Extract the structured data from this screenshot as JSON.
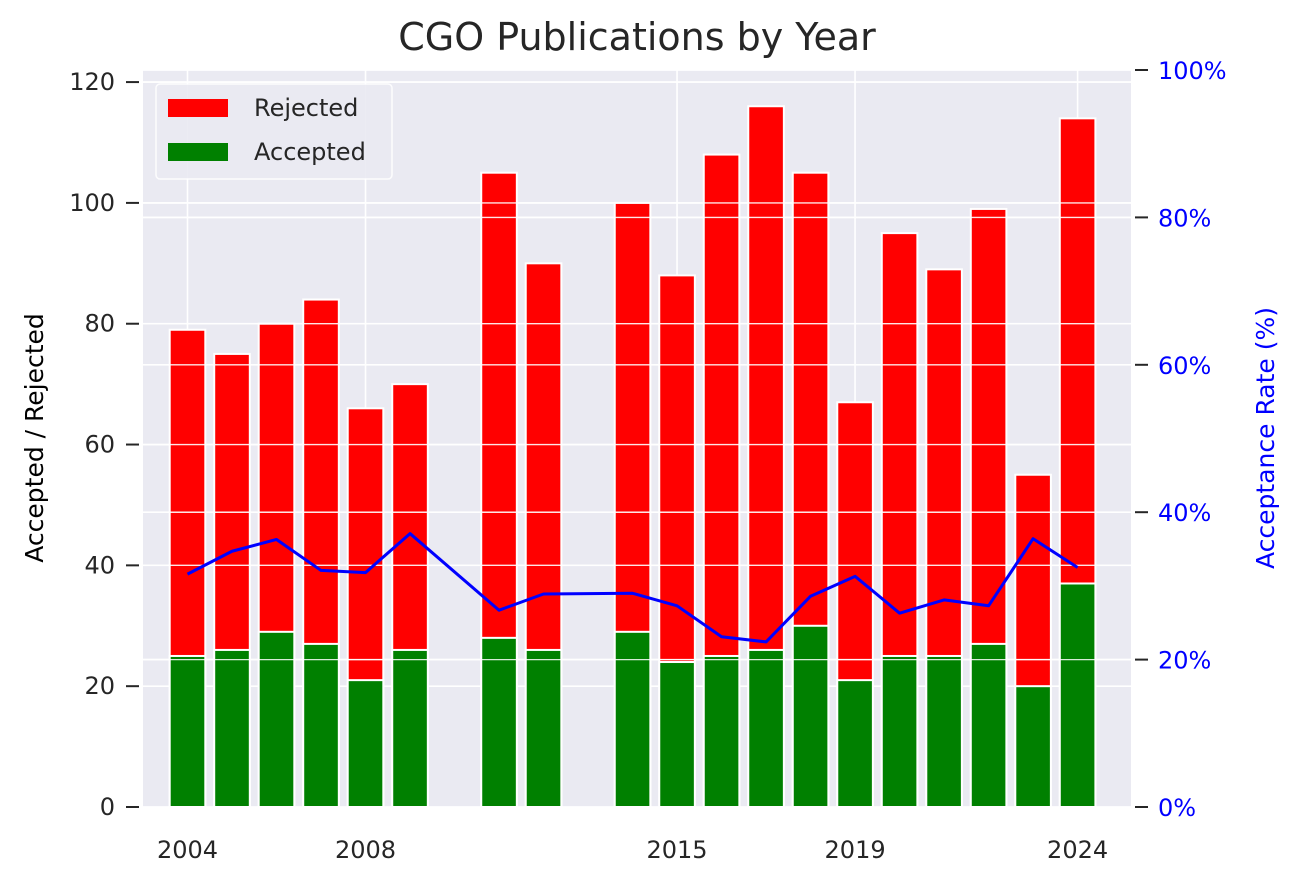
{
  "chart_data": {
    "type": "bar",
    "title": "CGO Publications by Year",
    "ylabel": "Accepted / Rejected",
    "ylabel_right": "Acceptance Rate (%)",
    "x_tick_labels": [
      "2004",
      "2008",
      "2015",
      "2019",
      "2024"
    ],
    "x_tick_values": [
      2004,
      2008,
      2015,
      2019,
      2024
    ],
    "y_ticks": [
      0,
      20,
      40,
      60,
      80,
      100,
      120
    ],
    "ylim": [
      0,
      122
    ],
    "y_right_ticks": [
      "0%",
      "20%",
      "40%",
      "60%",
      "80%",
      "100%"
    ],
    "y_right_values": [
      0,
      20,
      40,
      60,
      80,
      100
    ],
    "y_right_lim": [
      0,
      100
    ],
    "xlim": [
      2003.0,
      2025.2
    ],
    "grid": true,
    "legend_position": "upper-left",
    "x": [
      2004,
      2005,
      2006,
      2007,
      2008,
      2009,
      2011,
      2012,
      2014,
      2015,
      2016,
      2017,
      2018,
      2019,
      2020,
      2021,
      2022,
      2023,
      2024
    ],
    "series": [
      {
        "name": "Rejected",
        "color": "#ff0000",
        "values": [
          79,
          75,
          80,
          84,
          66,
          70,
          105,
          90,
          100,
          88,
          108,
          116,
          105,
          67,
          95,
          89,
          99,
          55,
          114
        ]
      },
      {
        "name": "Accepted",
        "color": "#008000",
        "values": [
          25,
          26,
          29,
          27,
          21,
          26,
          28,
          26,
          29,
          24,
          25,
          26,
          30,
          21,
          25,
          25,
          27,
          20,
          37
        ]
      }
    ],
    "rate_series": {
      "color": "#0000ff",
      "values": [
        31.6,
        34.7,
        36.3,
        32.1,
        31.8,
        37.1,
        26.7,
        28.9,
        29.0,
        27.3,
        23.1,
        22.4,
        28.6,
        31.3,
        26.3,
        28.1,
        27.3,
        36.4,
        32.5
      ]
    }
  }
}
